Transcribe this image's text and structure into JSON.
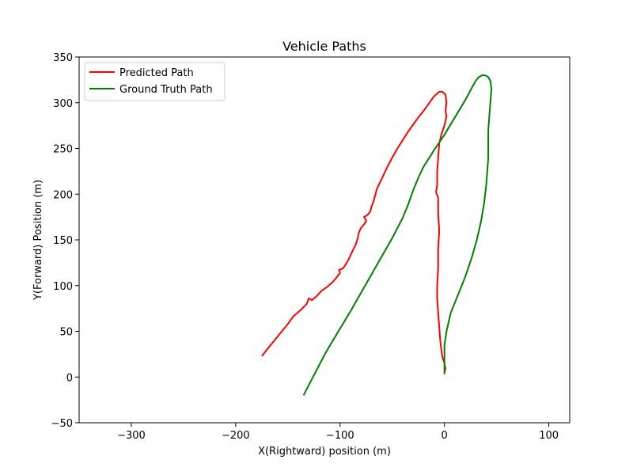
{
  "chart_data": {
    "type": "line",
    "title": "Vehicle Paths",
    "xlabel": "X(Rightward) position (m)",
    "ylabel": "Y(Forward) Position (m)",
    "xlim": [
      -350,
      120
    ],
    "ylim": [
      -50,
      350
    ],
    "xticks": [
      -300,
      -200,
      -100,
      0,
      100
    ],
    "yticks": [
      -50,
      0,
      50,
      100,
      150,
      200,
      250,
      300,
      350
    ],
    "xtick_labels": [
      "−300",
      "−200",
      "−100",
      "0",
      "100"
    ],
    "ytick_labels": [
      "−50",
      "0",
      "50",
      "100",
      "150",
      "200",
      "250",
      "300",
      "350"
    ],
    "grid": false,
    "legend_position": "upper-left",
    "series": [
      {
        "name": "Predicted Path",
        "color": "#ff0000",
        "points": [
          [
            -175,
            23
          ],
          [
            -170,
            30
          ],
          [
            -165,
            37
          ],
          [
            -160,
            44
          ],
          [
            -155,
            51
          ],
          [
            -150,
            58
          ],
          [
            -145,
            66
          ],
          [
            -138,
            73
          ],
          [
            -132,
            80
          ],
          [
            -130,
            86
          ],
          [
            -127,
            84
          ],
          [
            -122,
            89
          ],
          [
            -118,
            94
          ],
          [
            -112,
            99
          ],
          [
            -107,
            104
          ],
          [
            -104,
            108
          ],
          [
            -100,
            114
          ],
          [
            -101,
            117
          ],
          [
            -97,
            119
          ],
          [
            -93,
            126
          ],
          [
            -90,
            133
          ],
          [
            -88,
            138
          ],
          [
            -85,
            145
          ],
          [
            -83,
            152
          ],
          [
            -82,
            158
          ],
          [
            -80,
            163
          ],
          [
            -77,
            167
          ],
          [
            -75,
            171
          ],
          [
            -77,
            175
          ],
          [
            -74,
            177
          ],
          [
            -71,
            181
          ],
          [
            -70,
            186
          ],
          [
            -68,
            192
          ],
          [
            -66,
            200
          ],
          [
            -65,
            205
          ],
          [
            -63,
            210
          ],
          [
            -60,
            217
          ],
          [
            -55,
            229
          ],
          [
            -50,
            240
          ],
          [
            -45,
            250
          ],
          [
            -40,
            259
          ],
          [
            -35,
            268
          ],
          [
            -30,
            276
          ],
          [
            -25,
            284
          ],
          [
            -20,
            291
          ],
          [
            -15,
            299
          ],
          [
            -10,
            307
          ],
          [
            -5,
            312
          ],
          [
            -2,
            312
          ],
          [
            1,
            309
          ],
          [
            2,
            300
          ],
          [
            1,
            291
          ],
          [
            2,
            285
          ],
          [
            0,
            275
          ],
          [
            -3,
            265
          ],
          [
            -5,
            255
          ],
          [
            -6,
            240
          ],
          [
            -7,
            225
          ],
          [
            -7,
            210
          ],
          [
            -8,
            202
          ],
          [
            -6,
            196
          ],
          [
            -6,
            180
          ],
          [
            -5,
            160
          ],
          [
            -6,
            140
          ],
          [
            -6,
            120
          ],
          [
            -7,
            100
          ],
          [
            -7,
            85
          ],
          [
            -6,
            70
          ],
          [
            -5,
            55
          ],
          [
            -4,
            40
          ],
          [
            -3,
            30
          ],
          [
            -2,
            22
          ],
          [
            0,
            15
          ],
          [
            1,
            9
          ],
          [
            0,
            5
          ]
        ]
      },
      {
        "name": "Ground Truth Path",
        "color": "#008000",
        "points": [
          [
            -135,
            -20
          ],
          [
            -130,
            -9
          ],
          [
            -125,
            2
          ],
          [
            -120,
            13
          ],
          [
            -115,
            24
          ],
          [
            -110,
            34
          ],
          [
            -100,
            53
          ],
          [
            -90,
            72
          ],
          [
            -80,
            92
          ],
          [
            -70,
            112
          ],
          [
            -60,
            132
          ],
          [
            -50,
            152
          ],
          [
            -40,
            174
          ],
          [
            -35,
            188
          ],
          [
            -30,
            204
          ],
          [
            -25,
            218
          ],
          [
            -20,
            230
          ],
          [
            -10,
            248
          ],
          [
            0,
            265
          ],
          [
            10,
            284
          ],
          [
            20,
            303
          ],
          [
            27,
            318
          ],
          [
            30,
            324
          ],
          [
            33,
            328
          ],
          [
            36,
            330
          ],
          [
            39,
            330
          ],
          [
            42,
            328
          ],
          [
            44,
            324
          ],
          [
            45,
            315
          ],
          [
            44,
            300
          ],
          [
            43,
            285
          ],
          [
            42,
            270
          ],
          [
            42,
            255
          ],
          [
            42,
            240
          ],
          [
            41,
            225
          ],
          [
            40,
            210
          ],
          [
            38,
            190
          ],
          [
            35,
            170
          ],
          [
            31,
            150
          ],
          [
            26,
            130
          ],
          [
            20,
            110
          ],
          [
            13,
            90
          ],
          [
            6,
            70
          ],
          [
            2,
            50
          ],
          [
            0,
            35
          ],
          [
            0,
            20
          ],
          [
            0,
            10
          ],
          [
            0,
            3
          ]
        ]
      }
    ]
  }
}
